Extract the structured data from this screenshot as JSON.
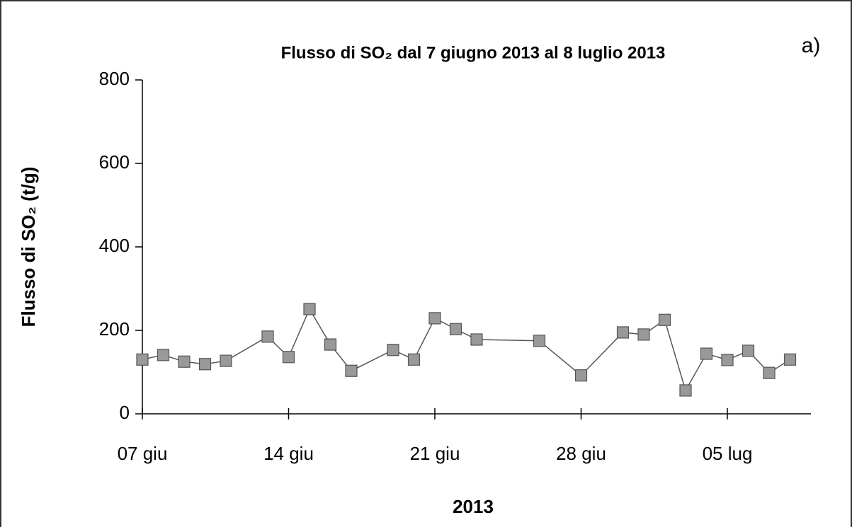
{
  "chart_data": {
    "type": "line",
    "title": "Flusso di SO₂ dal 7 giugno 2013 al 8 luglio 2013",
    "annotation": "a)",
    "x_label": "2013",
    "y_label": "Flusso di SO₂  (t/g)",
    "x": [
      "06-07",
      "06-08",
      "06-09",
      "06-10",
      "06-11",
      "06-13",
      "06-14",
      "06-15",
      "06-16",
      "06-17",
      "06-19",
      "06-20",
      "06-21",
      "06-22",
      "06-23",
      "06-26",
      "06-28",
      "06-30",
      "07-01",
      "07-02",
      "07-03",
      "07-04",
      "07-05",
      "07-06",
      "07-07",
      "07-08"
    ],
    "series": [
      {
        "name": "Flusso di SO₂",
        "color": "#999999",
        "values": [
          130,
          141,
          125,
          119,
          127,
          185,
          136,
          251,
          166,
          103,
          153,
          130,
          229,
          203,
          178,
          175,
          92,
          195,
          190,
          225,
          56,
          144,
          129,
          151,
          98,
          130
        ]
      }
    ],
    "xlim": [
      "06-07",
      "07-09"
    ],
    "xticks": [
      {
        "value": "06-07",
        "label": "07 giu"
      },
      {
        "value": "06-14",
        "label": "14 giu"
      },
      {
        "value": "06-21",
        "label": "21 giu"
      },
      {
        "value": "06-28",
        "label": "28 giu"
      },
      {
        "value": "07-05",
        "label": "05 lug"
      }
    ],
    "ylim": [
      0,
      800
    ],
    "yticks": [
      0,
      200,
      400,
      600,
      800
    ]
  }
}
